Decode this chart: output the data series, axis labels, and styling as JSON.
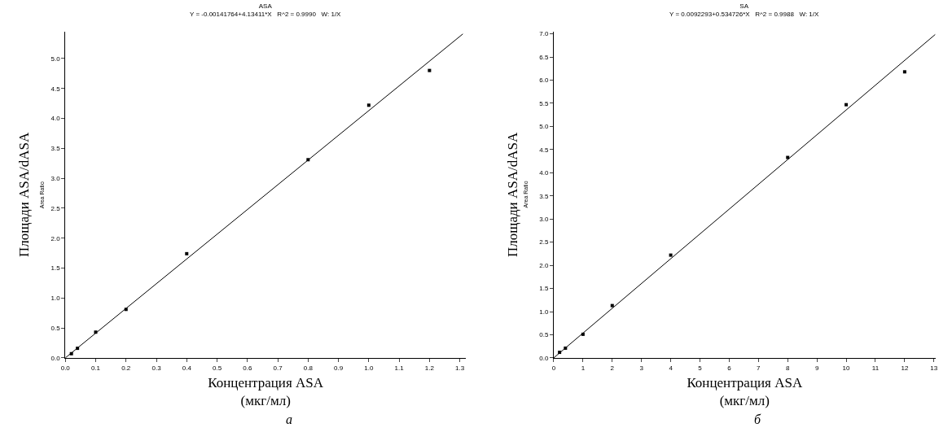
{
  "chart_data": [
    {
      "type": "scatter",
      "title": "ASA",
      "subtitle": "Y = -0.00141764+4.13411*X   R^2 = 0.9990   W: 1/X",
      "xlabel": "Концентрация ASA\n(мкг/мл)",
      "ylabel": "Площади ASA/dASA",
      "annotations": [
        "Area Ratio",
        "а"
      ],
      "series": [
        {
          "color": "#000000",
          "marker": "square",
          "x": [
            0.02,
            0.04,
            0.1,
            0.2,
            0.4,
            0.8,
            1.0,
            1.2
          ],
          "values": [
            0.07,
            0.16,
            0.43,
            0.81,
            1.74,
            3.31,
            4.22,
            4.8
          ]
        },
        {
          "type": "line",
          "color": "#000000",
          "marker": "none",
          "x": [
            0,
            1.31
          ],
          "values": [
            0,
            5.41
          ]
        }
      ],
      "xlim": [
        0,
        1.32
      ],
      "ylim": [
        0,
        5.45
      ],
      "xticks": [
        {
          "value": 0,
          "label": "0.0"
        },
        0.1,
        0.2,
        0.3,
        0.4,
        0.5,
        0.6,
        0.7,
        0.8,
        0.9,
        {
          "value": 1,
          "label": "1.0"
        },
        1.1,
        1.2,
        1.3
      ],
      "yticks": [
        {
          "value": 0,
          "label": "0.0"
        },
        0.5,
        {
          "value": 1,
          "label": "1.0"
        },
        1.5,
        {
          "value": 2,
          "label": "2.0"
        },
        2.5,
        {
          "value": 3,
          "label": "3.0"
        },
        3.5,
        {
          "value": 4,
          "label": "4.0"
        },
        4.5,
        {
          "value": 5,
          "label": "5.0"
        }
      ]
    },
    {
      "type": "scatter",
      "title": "SA",
      "subtitle": "Y = 0.0092293+0.534726*X   R^2 = 0.9988   W: 1/X",
      "xlabel": "Концентрация ASA\n(мкг/мл)",
      "ylabel": "Площади ASA/dASA",
      "annotations": [
        "Area Ratio",
        "б"
      ],
      "series": [
        {
          "color": "#000000",
          "marker": "square",
          "x": [
            0.2,
            0.4,
            1,
            2,
            4,
            8,
            10,
            12
          ],
          "values": [
            0.12,
            0.21,
            0.51,
            1.13,
            2.22,
            4.33,
            5.47,
            6.18
          ]
        },
        {
          "type": "line",
          "color": "#000000",
          "marker": "none",
          "x": [
            0,
            13.05
          ],
          "values": [
            0,
            6.99
          ]
        }
      ],
      "xlim": [
        0,
        13.05
      ],
      "ylim": [
        0,
        7.05
      ],
      "xticks": [
        0,
        1,
        2,
        3,
        4,
        5,
        6,
        7,
        8,
        9,
        10,
        11,
        12,
        13
      ],
      "yticks": [
        {
          "value": 0,
          "label": "0.0"
        },
        0.5,
        {
          "value": 1,
          "label": "1.0"
        },
        1.5,
        {
          "value": 2,
          "label": "2.0"
        },
        2.5,
        {
          "value": 3,
          "label": "3.0"
        },
        3.5,
        {
          "value": 4,
          "label": "4.0"
        },
        4.5,
        {
          "value": 5,
          "label": "5.0"
        },
        5.5,
        {
          "value": 6,
          "label": "6.0"
        },
        6.5,
        {
          "value": 7,
          "label": "7.0"
        }
      ]
    }
  ]
}
